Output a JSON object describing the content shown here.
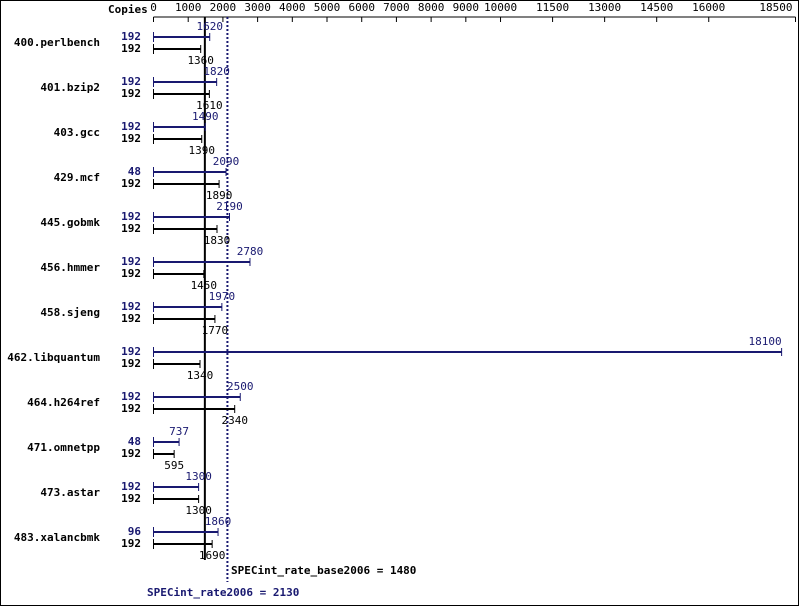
{
  "chart_data": {
    "type": "bar",
    "copies_label": "Copies",
    "categories": [
      "400.perlbench",
      "401.bzip2",
      "403.gcc",
      "429.mcf",
      "445.gobmk",
      "456.hmmer",
      "458.sjeng",
      "462.libquantum",
      "464.h264ref",
      "471.omnetpp",
      "473.astar",
      "483.xalancbmk"
    ],
    "peak": {
      "color": "#191970",
      "copies": [
        192,
        192,
        192,
        48,
        192,
        192,
        192,
        192,
        192,
        48,
        192,
        96
      ],
      "values": [
        1620,
        1820,
        1490,
        2090,
        2190,
        2780,
        1970,
        18100,
        2500,
        737,
        1300,
        1860
      ]
    },
    "base": {
      "color": "#000000",
      "copies": [
        192,
        192,
        192,
        192,
        192,
        192,
        192,
        192,
        192,
        192,
        192,
        192
      ],
      "values": [
        1360,
        1610,
        1390,
        1890,
        1830,
        1450,
        1770,
        1340,
        2340,
        595,
        1300,
        1690
      ]
    },
    "xlim": [
      0,
      18500
    ],
    "xticks": [
      0,
      1000,
      2000,
      3000,
      4000,
      5000,
      6000,
      7000,
      8000,
      9000,
      10000,
      11500,
      13000,
      14500,
      16000,
      18500
    ],
    "base_metric": {
      "label": "SPECint_rate_base2006 = 1480",
      "value": 1480
    },
    "peak_metric": {
      "label": "SPECint_rate2006 = 2130",
      "value": 2130
    }
  }
}
